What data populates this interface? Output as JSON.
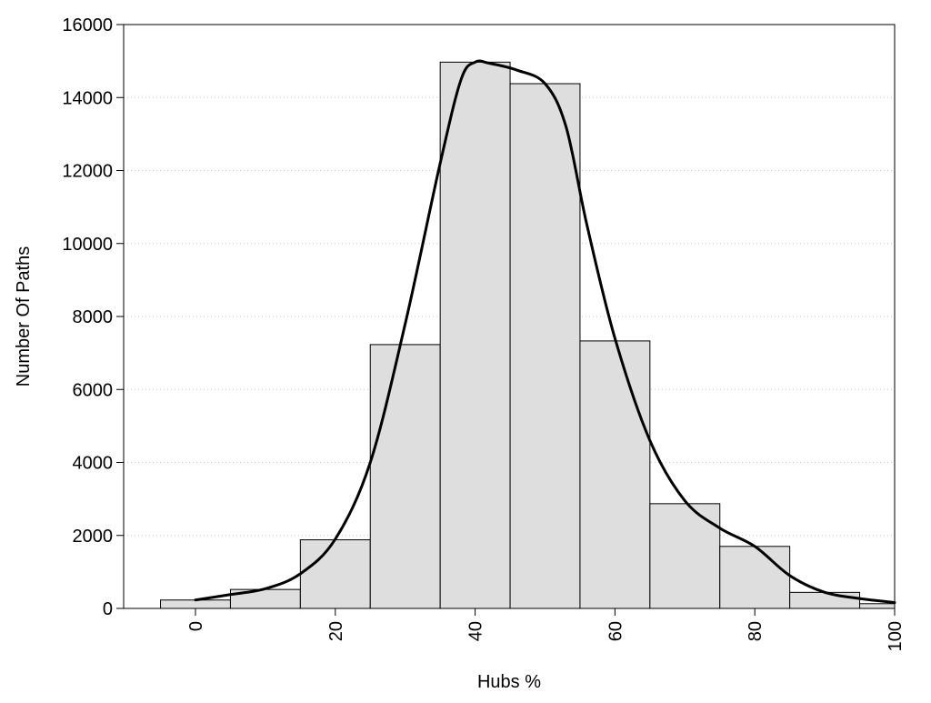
{
  "chart_data": {
    "type": "bar",
    "title": "",
    "xlabel": "Hubs %",
    "ylabel": "Number Of Paths",
    "xlim": [
      -10,
      100
    ],
    "ylim": [
      0,
      16000
    ],
    "x_ticks": [
      0,
      20,
      40,
      60,
      80,
      100
    ],
    "y_ticks": [
      0,
      2000,
      4000,
      6000,
      8000,
      10000,
      12000,
      14000,
      16000
    ],
    "grid": true,
    "legend": "none",
    "bin_width": 10,
    "bins": [
      {
        "x": 0,
        "value": 230
      },
      {
        "x": 10,
        "value": 520
      },
      {
        "x": 20,
        "value": 1880
      },
      {
        "x": 30,
        "value": 7230
      },
      {
        "x": 40,
        "value": 14970
      },
      {
        "x": 50,
        "value": 14380
      },
      {
        "x": 60,
        "value": 7330
      },
      {
        "x": 70,
        "value": 2870
      },
      {
        "x": 80,
        "value": 1700
      },
      {
        "x": 90,
        "value": 440
      },
      {
        "x": 100,
        "value": 130
      }
    ],
    "curve": [
      {
        "x": 0,
        "y": 230
      },
      {
        "x": 5,
        "y": 380
      },
      {
        "x": 10,
        "y": 540
      },
      {
        "x": 15,
        "y": 950
      },
      {
        "x": 20,
        "y": 1900
      },
      {
        "x": 25,
        "y": 4000
      },
      {
        "x": 30,
        "y": 7800
      },
      {
        "x": 35,
        "y": 12200
      },
      {
        "x": 38,
        "y": 14500
      },
      {
        "x": 40,
        "y": 14970
      },
      {
        "x": 42,
        "y": 14940
      },
      {
        "x": 46,
        "y": 14750
      },
      {
        "x": 50,
        "y": 14380
      },
      {
        "x": 53,
        "y": 13200
      },
      {
        "x": 56,
        "y": 10500
      },
      {
        "x": 60,
        "y": 7400
      },
      {
        "x": 65,
        "y": 4600
      },
      {
        "x": 70,
        "y": 2950
      },
      {
        "x": 75,
        "y": 2200
      },
      {
        "x": 80,
        "y": 1700
      },
      {
        "x": 85,
        "y": 900
      },
      {
        "x": 90,
        "y": 440
      },
      {
        "x": 95,
        "y": 270
      },
      {
        "x": 100,
        "y": 160
      }
    ],
    "colors": {
      "bar_fill": "#dedede",
      "bar_stroke": "#000000",
      "curve": "#000000",
      "grid": "#c8c8c8"
    }
  }
}
